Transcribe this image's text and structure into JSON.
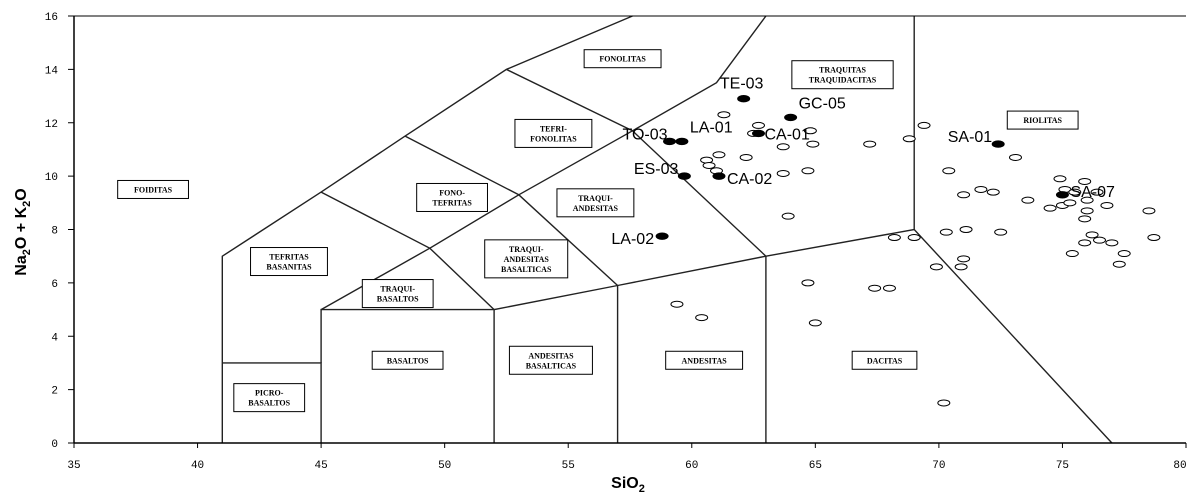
{
  "chart_data": {
    "type": "scatter",
    "title": "",
    "xlabel": "SiO",
    "xlabel_sub": "2",
    "ylabel_parts": [
      "Na",
      "2",
      "O + K",
      "2",
      "O"
    ],
    "xlim": [
      35,
      80
    ],
    "ylim": [
      0,
      16
    ],
    "x_ticks": [
      35,
      40,
      45,
      50,
      55,
      60,
      65,
      70,
      75,
      80
    ],
    "x_tick_labels": [
      "35",
      "40",
      "45",
      "50",
      "55",
      "60",
      "65",
      "70",
      "75",
      "80"
    ],
    "y_ticks": [
      0,
      2,
      4,
      6,
      8,
      10,
      12,
      14,
      16
    ],
    "y_tick_labels": [
      "0",
      "2",
      "4",
      "6",
      "8",
      "10",
      "12",
      "14",
      "16"
    ],
    "boundaries": [
      [
        [
          41,
          0
        ],
        [
          41,
          7
        ],
        [
          45,
          9.4
        ],
        [
          48.4,
          11.5
        ],
        [
          52.5,
          14
        ],
        [
          57.6,
          16
        ]
      ],
      [
        [
          45,
          9.4
        ],
        [
          49.4,
          7.3
        ],
        [
          53,
          9.3
        ],
        [
          57.6,
          11.7
        ],
        [
          61,
          13.5
        ],
        [
          63,
          16
        ]
      ],
      [
        [
          48.4,
          11.5
        ],
        [
          53,
          9.3
        ]
      ],
      [
        [
          52.5,
          14
        ],
        [
          57.6,
          11.7
        ]
      ],
      [
        [
          41,
          3
        ],
        [
          45,
          3
        ],
        [
          45,
          0
        ]
      ],
      [
        [
          45,
          3
        ],
        [
          45,
          5
        ],
        [
          52,
          5
        ],
        [
          52,
          0
        ]
      ],
      [
        [
          45,
          5
        ],
        [
          49.4,
          7.3
        ],
        [
          52,
          5
        ],
        [
          57,
          5.9
        ],
        [
          63,
          7
        ],
        [
          69,
          8
        ],
        [
          77,
          0
        ]
      ],
      [
        [
          57,
          0
        ],
        [
          57,
          5.9
        ]
      ],
      [
        [
          63,
          0
        ],
        [
          63,
          7
        ]
      ],
      [
        [
          57.6,
          11.7
        ],
        [
          63,
          7
        ]
      ],
      [
        [
          53,
          9.3
        ],
        [
          57,
          5.9
        ]
      ],
      [
        [
          69,
          8
        ],
        [
          69,
          16
        ]
      ]
    ],
    "field_labels": [
      {
        "lines": [
          "FOIDITAS"
        ],
        "x": 38.2,
        "y": 9.5
      },
      {
        "lines": [
          "FONOLITAS"
        ],
        "x": 57.2,
        "y": 14.4
      },
      {
        "lines": [
          "TRAQUITAS",
          "TRAQUIDACITAS"
        ],
        "x": 66.1,
        "y": 13.8
      },
      {
        "lines": [
          "TEFRI-",
          "FONOLITAS"
        ],
        "x": 54.4,
        "y": 11.6
      },
      {
        "lines": [
          "RIOLITAS"
        ],
        "x": 74.2,
        "y": 12.1
      },
      {
        "lines": [
          "FONO-",
          "TEFRITAS"
        ],
        "x": 50.3,
        "y": 9.2
      },
      {
        "lines": [
          "TRAQUI-",
          "ANDESITAS"
        ],
        "x": 56.1,
        "y": 9.0
      },
      {
        "lines": [
          "TEFRITAS",
          "BASANITAS"
        ],
        "x": 43.7,
        "y": 6.8
      },
      {
        "lines": [
          "TRAQUI-",
          "ANDESITAS",
          "BASALTICAS"
        ],
        "x": 53.3,
        "y": 6.9
      },
      {
        "lines": [
          "TRAQUI-",
          "BASALTOS"
        ],
        "x": 48.1,
        "y": 5.6
      },
      {
        "lines": [
          "BASALTOS"
        ],
        "x": 48.5,
        "y": 3.1
      },
      {
        "lines": [
          "ANDESITAS",
          "BASALTICAS"
        ],
        "x": 54.3,
        "y": 3.1
      },
      {
        "lines": [
          "ANDESITAS"
        ],
        "x": 60.5,
        "y": 3.1
      },
      {
        "lines": [
          "DACITAS"
        ],
        "x": 67.8,
        "y": 3.1
      },
      {
        "lines": [
          "PICRO-",
          "BASALTOS"
        ],
        "x": 42.9,
        "y": 1.7
      }
    ],
    "series": [
      {
        "name": "",
        "marker": "filled",
        "points": [
          {
            "label": "TE-03",
            "x": 62.1,
            "y": 12.9
          },
          {
            "label": "GC-05",
            "x": 64.0,
            "y": 12.2
          },
          {
            "label": "TO-03",
            "x": 59.1,
            "y": 11.3
          },
          {
            "label": "LA-01",
            "x": 59.6,
            "y": 11.3
          },
          {
            "label": "CA-01",
            "x": 62.7,
            "y": 11.6
          },
          {
            "label": "SA-01",
            "x": 72.4,
            "y": 11.2
          },
          {
            "label": "ES-03",
            "x": 59.7,
            "y": 10.0
          },
          {
            "label": "CA-02",
            "x": 61.1,
            "y": 10.0
          },
          {
            "label": "SA-07",
            "x": 75.0,
            "y": 9.3
          },
          {
            "label": "LA-02",
            "x": 58.8,
            "y": 7.75
          }
        ]
      },
      {
        "name": "",
        "marker": "open",
        "points": [
          [
            61.3,
            12.3
          ],
          [
            62.5,
            11.6
          ],
          [
            62.7,
            11.9
          ],
          [
            63.7,
            11.1
          ],
          [
            64.8,
            11.7
          ],
          [
            64.9,
            11.2
          ],
          [
            60.6,
            10.6
          ],
          [
            60.7,
            10.4
          ],
          [
            61.0,
            10.2
          ],
          [
            61.1,
            10.8
          ],
          [
            62.2,
            10.7
          ],
          [
            63.7,
            10.1
          ],
          [
            64.7,
            10.2
          ],
          [
            67.2,
            11.2
          ],
          [
            68.8,
            11.4
          ],
          [
            69.4,
            11.9
          ],
          [
            73.1,
            10.7
          ],
          [
            70.4,
            10.2
          ],
          [
            74.9,
            9.9
          ],
          [
            75.9,
            9.8
          ],
          [
            75.1,
            9.5
          ],
          [
            75.5,
            9.4
          ],
          [
            76.0,
            9.1
          ],
          [
            75.0,
            8.9
          ],
          [
            75.3,
            9.0
          ],
          [
            76.4,
            9.4
          ],
          [
            71.7,
            9.5
          ],
          [
            72.2,
            9.4
          ],
          [
            71.0,
            9.3
          ],
          [
            74.5,
            8.8
          ],
          [
            73.6,
            9.1
          ],
          [
            76.0,
            8.7
          ],
          [
            75.9,
            8.4
          ],
          [
            76.8,
            8.9
          ],
          [
            78.5,
            8.7
          ],
          [
            71.1,
            8.0
          ],
          [
            72.5,
            7.9
          ],
          [
            76.2,
            7.8
          ],
          [
            75.9,
            7.5
          ],
          [
            76.5,
            7.6
          ],
          [
            77.0,
            7.5
          ],
          [
            77.5,
            7.1
          ],
          [
            78.7,
            7.7
          ],
          [
            75.4,
            7.1
          ],
          [
            63.9,
            8.5
          ],
          [
            68.2,
            7.7
          ],
          [
            69.0,
            7.7
          ],
          [
            70.3,
            7.9
          ],
          [
            71.0,
            6.9
          ],
          [
            70.9,
            6.6
          ],
          [
            69.9,
            6.6
          ],
          [
            77.3,
            6.7
          ],
          [
            64.7,
            6.0
          ],
          [
            67.4,
            5.8
          ],
          [
            68.0,
            5.8
          ],
          [
            65.0,
            4.5
          ],
          [
            59.4,
            5.2
          ],
          [
            60.4,
            4.7
          ],
          [
            70.2,
            1.5
          ]
        ]
      }
    ]
  }
}
